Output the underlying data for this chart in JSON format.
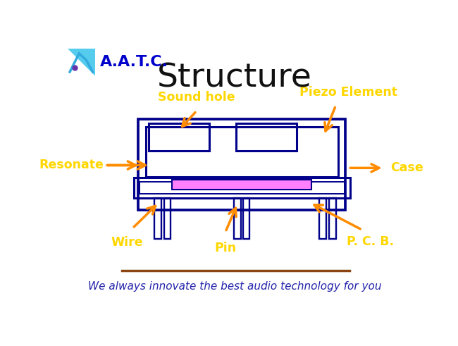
{
  "title": "Structure",
  "title_fontsize": 34,
  "title_color": "#111111",
  "logo_text": "A.A.T.C.",
  "logo_color": "#0000cc",
  "tagline": "We always innovate the best audio technology for you",
  "tagline_color": "#2222aa",
  "line_color": "#8B4513",
  "diagram_color": "#00008B",
  "piezo_color": "#FF80FF",
  "arrow_color": "#FF8C00",
  "label_color": "#FFD700",
  "label_fontsize": 12.5,
  "logo_box_color": "#55CCEE",
  "logo_box_color2": "#33AADD"
}
